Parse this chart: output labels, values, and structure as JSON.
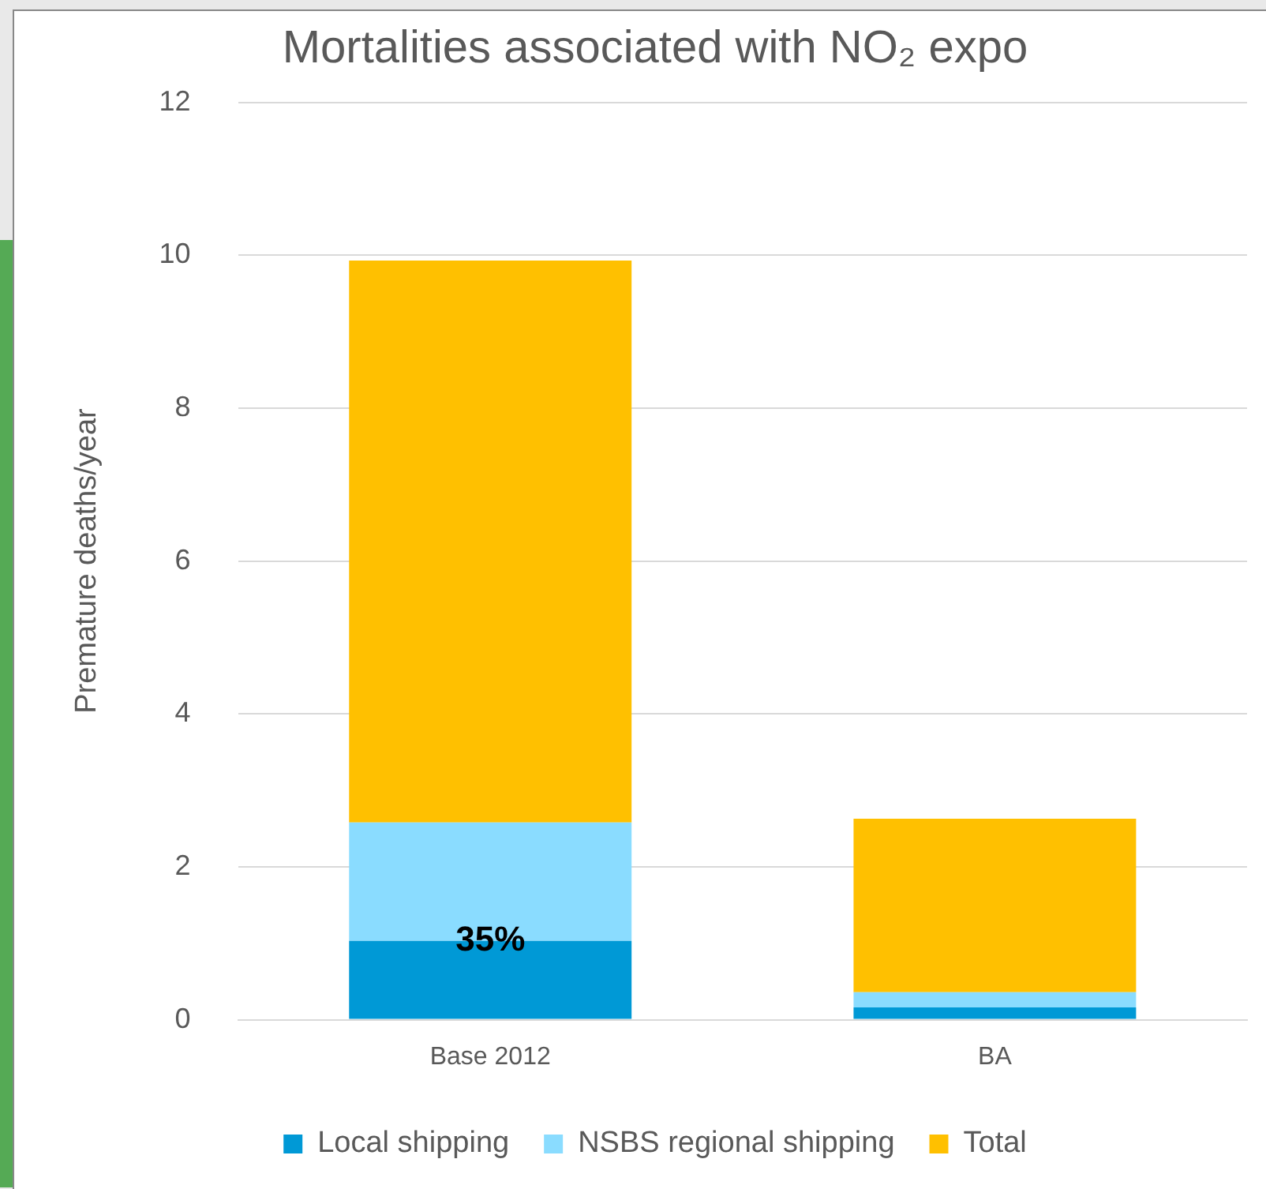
{
  "chart_data": {
    "type": "bar",
    "title": "Mortalities associated with NO₂ expo",
    "ylabel": "Premature deaths/year",
    "categories": [
      "Base 2012",
      "BA"
    ],
    "series": [
      {
        "name": "Local shipping",
        "color": "#0099d6",
        "values": [
          1.03,
          0.16
        ]
      },
      {
        "name": "NSBS regional shipping",
        "color": "#8adcff",
        "values": [
          1.55,
          0.2
        ]
      },
      {
        "name": "Total",
        "color": "#ffc000",
        "values": [
          7.35,
          2.27
        ]
      }
    ],
    "stacked": true,
    "ylim": [
      0,
      12
    ],
    "yticks": [
      0,
      2,
      4,
      6,
      8,
      10,
      12
    ],
    "grid": "y",
    "legend": "bottom",
    "annotations": [
      {
        "text": "35%",
        "x": "Base 2012",
        "y": 1.03
      }
    ]
  }
}
